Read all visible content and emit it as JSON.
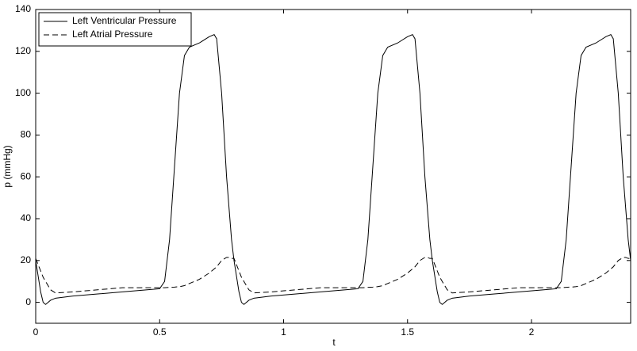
{
  "chart_data": {
    "type": "line",
    "x_label": "t",
    "y_label": "p (mmHg)",
    "x": [
      0,
      0.02,
      0.03,
      0.04,
      0.06,
      0.08,
      0.15,
      0.25,
      0.35,
      0.45,
      0.5,
      0.52,
      0.54,
      0.56,
      0.58,
      0.6,
      0.62,
      0.66,
      0.7,
      0.72,
      0.73,
      0.75,
      0.77,
      0.78,
      0.79,
      0.8,
      0.82,
      0.83,
      0.84,
      0.86,
      0.88,
      0.95,
      1.05,
      1.15,
      1.25,
      1.3,
      1.32,
      1.34,
      1.36,
      1.38,
      1.4,
      1.42,
      1.46,
      1.5,
      1.52,
      1.53,
      1.55,
      1.57,
      1.58,
      1.59,
      1.6,
      1.62,
      1.63,
      1.64,
      1.66,
      1.68,
      1.75,
      1.85,
      1.95,
      2.05,
      2.1,
      2.12,
      2.14,
      2.16,
      2.18,
      2.2,
      2.22,
      2.26,
      2.3,
      2.32,
      2.33,
      2.35,
      2.37,
      2.38,
      2.39,
      2.4
    ],
    "series": [
      {
        "name": "Left Ventricular Pressure",
        "color": "#000000",
        "linestyle": "solid",
        "values": [
          20,
          5,
          0,
          -1,
          1,
          2,
          3,
          4,
          5,
          6,
          6.5,
          10,
          30,
          65,
          100,
          118,
          122,
          124,
          127,
          128,
          126,
          100,
          60,
          45,
          30,
          20,
          5,
          0,
          -1,
          1,
          2,
          3,
          4,
          5,
          6,
          6.5,
          10,
          30,
          65,
          100,
          118,
          122,
          124,
          127,
          128,
          126,
          100,
          60,
          45,
          30,
          20,
          5,
          0,
          -1,
          1,
          2,
          3,
          4,
          5,
          6,
          6.5,
          10,
          30,
          65,
          100,
          118,
          122,
          124,
          127,
          128,
          126,
          100,
          60,
          45,
          30,
          20
        ]
      },
      {
        "name": "Left Atrial Pressure",
        "color": "#000000",
        "linestyle": "dashed",
        "values": [
          21,
          15,
          12,
          10,
          6,
          4.5,
          5,
          6,
          7,
          7,
          7,
          7,
          7.2,
          7.3,
          7.5,
          8,
          9,
          11,
          14,
          16,
          17,
          20,
          21.5,
          21.5,
          21,
          21,
          15,
          12,
          10,
          6,
          4.5,
          5,
          6,
          7,
          7,
          7,
          7,
          7.2,
          7.3,
          7.5,
          8,
          9,
          11,
          14,
          16,
          17,
          20,
          21.5,
          21.5,
          21,
          21,
          15,
          12,
          10,
          6,
          4.5,
          5,
          6,
          7,
          7,
          7,
          7,
          7.2,
          7.3,
          7.5,
          8,
          9,
          11,
          14,
          16,
          17,
          20,
          21.5,
          21.5,
          21,
          21
        ]
      }
    ],
    "xlim": [
      0,
      2.4
    ],
    "ylim": [
      -10,
      140
    ],
    "xticks": [
      0,
      0.5,
      1,
      1.5,
      2
    ],
    "yticks": [
      0,
      20,
      40,
      60,
      80,
      100,
      120,
      140
    ],
    "legend": "upper-left",
    "grid": false
  }
}
